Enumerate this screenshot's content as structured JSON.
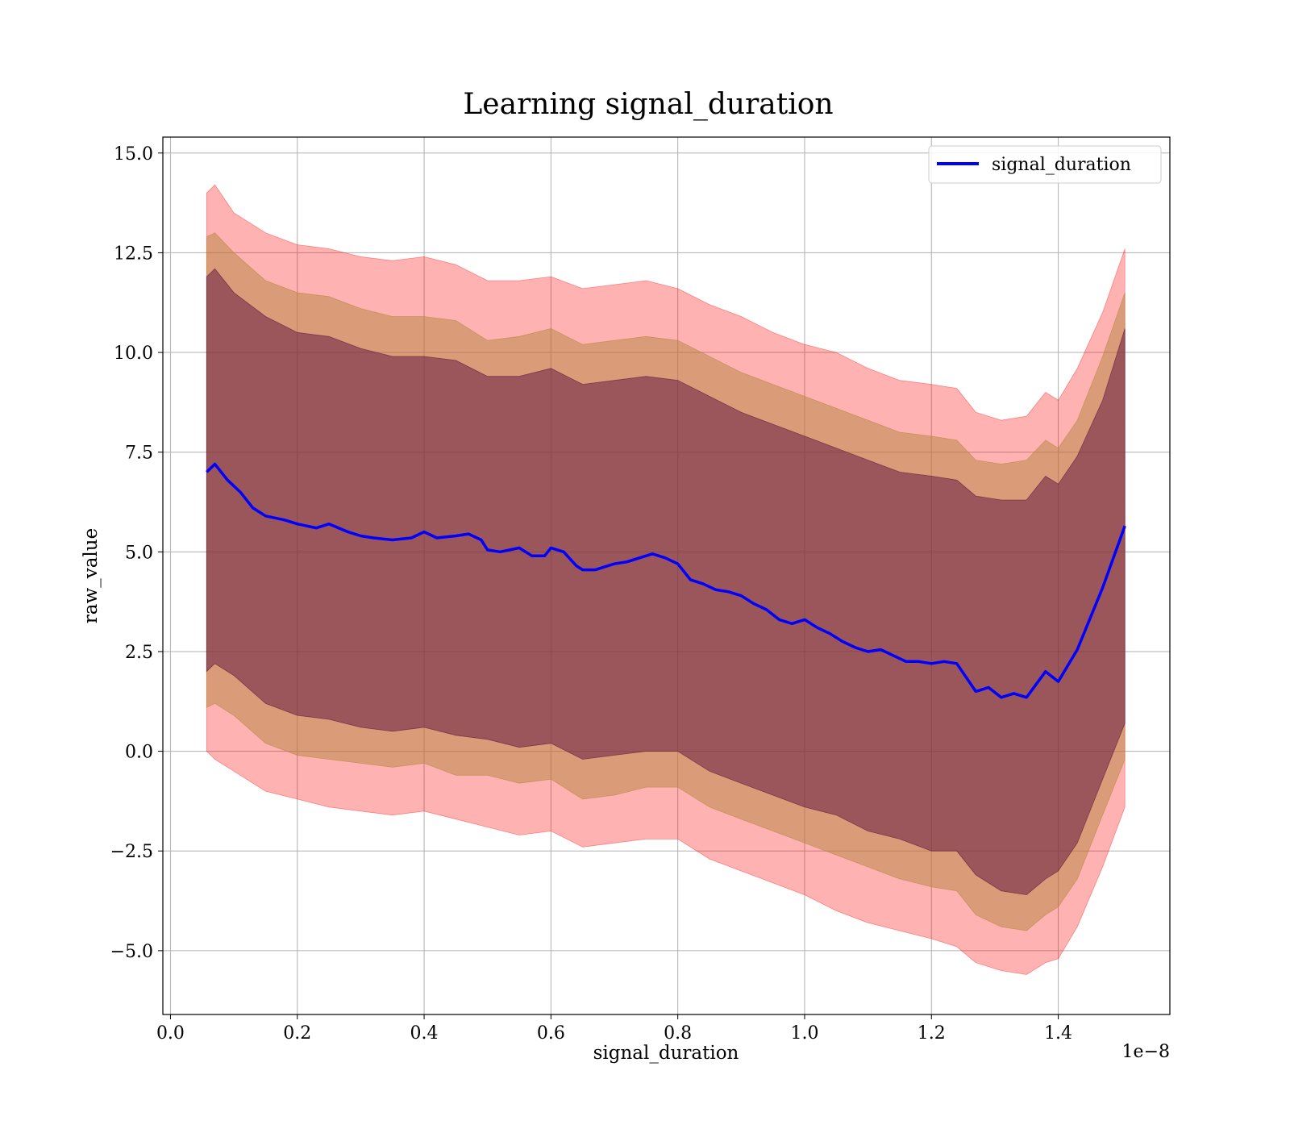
{
  "chart_data": {
    "type": "line",
    "title": "Learning signal_duration",
    "xlabel": "signal_duration",
    "ylabel": "raw_value",
    "x_scale_label": "1e−8",
    "x_scale_factor": 1e-08,
    "xlim": [
      -0.012,
      1.576
    ],
    "ylim": [
      -6.6,
      15.4
    ],
    "xticks": [
      0.0,
      0.2,
      0.4,
      0.6,
      0.8,
      1.0,
      1.2,
      1.4
    ],
    "xtick_labels": [
      "0.0",
      "0.2",
      "0.4",
      "0.6",
      "0.8",
      "1.0",
      "1.2",
      "1.4"
    ],
    "yticks": [
      15.0,
      12.5,
      10.0,
      7.5,
      5.0,
      2.5,
      0.0,
      -2.5,
      -5.0
    ],
    "ytick_labels": [
      "15.0",
      "12.5",
      "10.0",
      "7.5",
      "5.0",
      "2.5",
      "0.0",
      "−2.5",
      "−5.0"
    ],
    "grid": true,
    "legend_position": "top-right",
    "series": [
      {
        "name": "signal_duration",
        "color": "#0000ff",
        "x": [
          0.057,
          0.07,
          0.09,
          0.11,
          0.13,
          0.15,
          0.18,
          0.2,
          0.23,
          0.25,
          0.28,
          0.3,
          0.32,
          0.35,
          0.38,
          0.4,
          0.42,
          0.45,
          0.47,
          0.49,
          0.5,
          0.52,
          0.55,
          0.57,
          0.59,
          0.6,
          0.62,
          0.64,
          0.65,
          0.67,
          0.69,
          0.7,
          0.72,
          0.74,
          0.76,
          0.78,
          0.8,
          0.82,
          0.84,
          0.86,
          0.88,
          0.9,
          0.92,
          0.94,
          0.96,
          0.98,
          1.0,
          1.02,
          1.04,
          1.06,
          1.08,
          1.1,
          1.12,
          1.14,
          1.16,
          1.18,
          1.2,
          1.22,
          1.24,
          1.27,
          1.29,
          1.31,
          1.33,
          1.35,
          1.38,
          1.4,
          1.43,
          1.47,
          1.505
        ],
        "y": [
          7.0,
          7.2,
          6.8,
          6.5,
          6.1,
          5.9,
          5.8,
          5.7,
          5.6,
          5.7,
          5.5,
          5.4,
          5.35,
          5.3,
          5.35,
          5.5,
          5.35,
          5.4,
          5.45,
          5.3,
          5.05,
          5.0,
          5.1,
          4.9,
          4.9,
          5.1,
          5.0,
          4.65,
          4.55,
          4.55,
          4.65,
          4.7,
          4.75,
          4.85,
          4.95,
          4.85,
          4.7,
          4.3,
          4.2,
          4.05,
          4.0,
          3.9,
          3.7,
          3.55,
          3.3,
          3.2,
          3.3,
          3.1,
          2.95,
          2.75,
          2.6,
          2.5,
          2.55,
          2.4,
          2.25,
          2.25,
          2.2,
          2.25,
          2.2,
          1.5,
          1.6,
          1.35,
          1.45,
          1.35,
          2.0,
          1.75,
          2.55,
          4.1,
          5.65
        ]
      }
    ],
    "bands": [
      {
        "kind": "outer",
        "color": "#ff0000",
        "opacity": 0.3,
        "x": [
          0.057,
          0.07,
          0.1,
          0.15,
          0.2,
          0.25,
          0.3,
          0.35,
          0.4,
          0.45,
          0.5,
          0.55,
          0.6,
          0.65,
          0.7,
          0.75,
          0.8,
          0.85,
          0.9,
          0.95,
          1.0,
          1.05,
          1.1,
          1.15,
          1.2,
          1.24,
          1.27,
          1.31,
          1.35,
          1.38,
          1.4,
          1.43,
          1.47,
          1.505
        ],
        "upper": [
          14.0,
          14.2,
          13.5,
          13.0,
          12.7,
          12.6,
          12.4,
          12.3,
          12.4,
          12.2,
          11.8,
          11.8,
          11.9,
          11.6,
          11.7,
          11.8,
          11.6,
          11.2,
          10.9,
          10.5,
          10.2,
          10.0,
          9.6,
          9.3,
          9.2,
          9.1,
          8.5,
          8.3,
          8.4,
          9.0,
          8.8,
          9.6,
          11.0,
          12.6
        ],
        "lower": [
          0.0,
          -0.2,
          -0.5,
          -1.0,
          -1.2,
          -1.4,
          -1.5,
          -1.6,
          -1.5,
          -1.7,
          -1.9,
          -2.1,
          -2.0,
          -2.4,
          -2.3,
          -2.2,
          -2.2,
          -2.7,
          -3.0,
          -3.3,
          -3.6,
          -4.0,
          -4.3,
          -4.5,
          -4.7,
          -4.9,
          -5.3,
          -5.5,
          -5.6,
          -5.3,
          -5.2,
          -4.4,
          -2.9,
          -1.4
        ]
      },
      {
        "kind": "middle",
        "color": "#b5853d",
        "opacity": 0.5,
        "x": [
          0.057,
          0.07,
          0.1,
          0.15,
          0.2,
          0.25,
          0.3,
          0.35,
          0.4,
          0.45,
          0.5,
          0.55,
          0.6,
          0.65,
          0.7,
          0.75,
          0.8,
          0.85,
          0.9,
          0.95,
          1.0,
          1.05,
          1.1,
          1.15,
          1.2,
          1.24,
          1.27,
          1.31,
          1.35,
          1.38,
          1.4,
          1.43,
          1.47,
          1.505
        ],
        "upper": [
          12.9,
          13.0,
          12.5,
          11.8,
          11.5,
          11.4,
          11.1,
          10.9,
          10.9,
          10.8,
          10.3,
          10.4,
          10.6,
          10.2,
          10.3,
          10.4,
          10.3,
          9.9,
          9.5,
          9.2,
          8.9,
          8.6,
          8.3,
          8.0,
          7.9,
          7.8,
          7.3,
          7.2,
          7.3,
          7.8,
          7.6,
          8.3,
          9.9,
          11.5
        ],
        "lower": [
          1.1,
          1.2,
          0.9,
          0.2,
          -0.1,
          -0.2,
          -0.3,
          -0.4,
          -0.3,
          -0.6,
          -0.6,
          -0.8,
          -0.7,
          -1.2,
          -1.1,
          -0.9,
          -0.9,
          -1.4,
          -1.7,
          -2.0,
          -2.3,
          -2.6,
          -2.9,
          -3.2,
          -3.4,
          -3.5,
          -4.1,
          -4.4,
          -4.5,
          -4.1,
          -3.9,
          -3.2,
          -1.6,
          -0.2
        ]
      },
      {
        "kind": "inner",
        "color": "#5a0f3c",
        "opacity": 0.5,
        "x": [
          0.057,
          0.07,
          0.1,
          0.15,
          0.2,
          0.25,
          0.3,
          0.35,
          0.4,
          0.45,
          0.5,
          0.55,
          0.6,
          0.65,
          0.7,
          0.75,
          0.8,
          0.85,
          0.9,
          0.95,
          1.0,
          1.05,
          1.1,
          1.15,
          1.2,
          1.24,
          1.27,
          1.31,
          1.35,
          1.38,
          1.4,
          1.43,
          1.47,
          1.505
        ],
        "upper": [
          11.9,
          12.1,
          11.5,
          10.9,
          10.5,
          10.4,
          10.1,
          9.9,
          9.9,
          9.8,
          9.4,
          9.4,
          9.6,
          9.2,
          9.3,
          9.4,
          9.3,
          8.9,
          8.5,
          8.2,
          7.9,
          7.6,
          7.3,
          7.0,
          6.9,
          6.8,
          6.4,
          6.3,
          6.3,
          6.9,
          6.7,
          7.4,
          8.8,
          10.6
        ],
        "lower": [
          2.0,
          2.2,
          1.9,
          1.2,
          0.9,
          0.8,
          0.6,
          0.5,
          0.6,
          0.4,
          0.3,
          0.1,
          0.2,
          -0.2,
          -0.1,
          0.0,
          0.0,
          -0.5,
          -0.8,
          -1.1,
          -1.4,
          -1.6,
          -2.0,
          -2.2,
          -2.5,
          -2.5,
          -3.1,
          -3.5,
          -3.6,
          -3.2,
          -3.0,
          -2.3,
          -0.7,
          0.7
        ]
      }
    ]
  }
}
